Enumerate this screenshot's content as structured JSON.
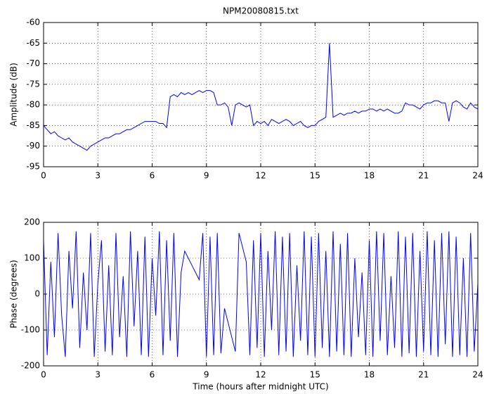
{
  "chart_data": [
    {
      "type": "line",
      "title": "NPM20080815.txt",
      "y_label": "Amplitude (dB)",
      "x": [
        0,
        0.2,
        0.4,
        0.6,
        0.8,
        1,
        1.2,
        1.4,
        1.6,
        1.8,
        2,
        2.2,
        2.4,
        2.6,
        2.8,
        3,
        3.2,
        3.4,
        3.6,
        3.8,
        4,
        4.2,
        4.4,
        4.6,
        4.8,
        5,
        5.2,
        5.4,
        5.6,
        5.8,
        6,
        6.2,
        6.4,
        6.6,
        6.8,
        7,
        7.2,
        7.4,
        7.6,
        7.8,
        8,
        8.2,
        8.4,
        8.6,
        8.8,
        9,
        9.2,
        9.4,
        9.6,
        9.8,
        10,
        10.2,
        10.4,
        10.6,
        10.8,
        11,
        11.2,
        11.4,
        11.6,
        11.8,
        12,
        12.2,
        12.4,
        12.6,
        12.8,
        13,
        13.2,
        13.4,
        13.6,
        13.8,
        14,
        14.2,
        14.4,
        14.6,
        14.8,
        15,
        15.2,
        15.4,
        15.6,
        15.8,
        16,
        16.2,
        16.4,
        16.6,
        16.8,
        17,
        17.2,
        17.4,
        17.6,
        17.8,
        18,
        18.2,
        18.4,
        18.6,
        18.8,
        19,
        19.2,
        19.4,
        19.6,
        19.8,
        20,
        20.2,
        20.4,
        20.6,
        20.8,
        21,
        21.2,
        21.4,
        21.6,
        21.8,
        22,
        22.2,
        22.4,
        22.6,
        22.8,
        23,
        23.2,
        23.4,
        23.6,
        23.8,
        24
      ],
      "series": [
        {
          "color": "#0000ff",
          "values": [
            -85,
            -86,
            -87,
            -86.5,
            -87.5,
            -88,
            -88.5,
            -88,
            -89,
            -89.5,
            -90,
            -90.5,
            -91,
            -90,
            -89.5,
            -89,
            -88.5,
            -88,
            -88,
            -87.5,
            -87,
            -87,
            -86.5,
            -86,
            -86,
            -85.5,
            -85,
            -84.5,
            -84,
            -84,
            -84,
            -84,
            -84.5,
            -84.5,
            -85.5,
            -78,
            -77.5,
            -78,
            -77,
            -77.5,
            -77,
            -77.5,
            -77,
            -76.5,
            -77,
            -76.5,
            -76.5,
            -77,
            -80,
            -80,
            -79.5,
            -80.5,
            -85,
            -80,
            -79.5,
            -80,
            -80.5,
            -80,
            -85,
            -84,
            -84.5,
            -84,
            -85,
            -83.5,
            -84,
            -84.5,
            -84,
            -83.5,
            -84,
            -85,
            -84.5,
            -84,
            -85,
            -85.5,
            -85,
            -85,
            -84,
            -83.5,
            -83,
            -65,
            -83,
            -82.5,
            -82,
            -82.5,
            -82,
            -82,
            -81.5,
            -82,
            -81.5,
            -81.5,
            -81,
            -81,
            -81.5,
            -81,
            -81.5,
            -81,
            -81.5,
            -82,
            -82,
            -81.5,
            -79.5,
            -80,
            -80,
            -80.5,
            -81,
            -80,
            -79.5,
            -79.5,
            -79,
            -79,
            -79.5,
            -79.5,
            -84,
            -79.5,
            -79,
            -79.5,
            -80.5,
            -81,
            -79.5,
            -80.5,
            -81
          ]
        }
      ],
      "xlim": [
        0,
        24
      ],
      "xticks": [
        0,
        3,
        6,
        9,
        12,
        15,
        18,
        21,
        24
      ],
      "ylim": [
        -95,
        -60
      ],
      "yticks": [
        -95,
        -90,
        -85,
        -80,
        -75,
        -70,
        -65,
        -60
      ],
      "grid": true
    },
    {
      "type": "line",
      "y_label": "Phase (degrees)",
      "x_label": "Time (hours after midnight UTC)",
      "x": [
        0,
        0.2,
        0.4,
        0.6,
        0.8,
        1,
        1.2,
        1.4,
        1.6,
        1.8,
        2,
        2.2,
        2.4,
        2.6,
        2.8,
        3,
        3.2,
        3.4,
        3.6,
        3.8,
        4,
        4.2,
        4.4,
        4.6,
        4.8,
        5,
        5.2,
        5.4,
        5.6,
        5.8,
        6,
        6.2,
        6.4,
        6.6,
        6.8,
        7,
        7.2,
        7.4,
        7.6,
        7.8,
        8,
        8.2,
        8.4,
        8.6,
        8.8,
        9,
        9.2,
        9.4,
        9.6,
        9.8,
        10,
        10.2,
        10.4,
        10.6,
        10.8,
        11,
        11.2,
        11.4,
        11.6,
        11.8,
        12,
        12.2,
        12.4,
        12.6,
        12.8,
        13,
        13.2,
        13.4,
        13.6,
        13.8,
        14,
        14.2,
        14.4,
        14.6,
        14.8,
        15,
        15.2,
        15.4,
        15.6,
        15.8,
        16,
        16.2,
        16.4,
        16.6,
        16.8,
        17,
        17.2,
        17.4,
        17.6,
        17.8,
        18,
        18.2,
        18.4,
        18.6,
        18.8,
        19,
        19.2,
        19.4,
        19.6,
        19.8,
        20,
        20.2,
        20.4,
        20.6,
        20.8,
        21,
        21.2,
        21.4,
        21.6,
        21.8,
        22,
        22.2,
        22.4,
        22.6,
        22.8,
        23,
        23.2,
        23.4,
        23.6,
        23.8,
        24
      ],
      "series": [
        {
          "color": "#0000ff",
          "values": [
            150,
            -170,
            90,
            -120,
            170,
            -60,
            -175,
            120,
            -40,
            175,
            -150,
            60,
            -100,
            170,
            -175,
            30,
            150,
            -160,
            80,
            -170,
            170,
            -120,
            50,
            -175,
            175,
            -90,
            120,
            -170,
            160,
            -175,
            100,
            -60,
            175,
            -170,
            150,
            -130,
            170,
            -175,
            60,
            120,
            100,
            80,
            60,
            40,
            170,
            -175,
            160,
            -170,
            170,
            -165,
            -40,
            -80,
            -120,
            -160,
            170,
            130,
            90,
            -170,
            150,
            -150,
            170,
            -175,
            120,
            -100,
            175,
            -170,
            160,
            -160,
            170,
            -175,
            80,
            -130,
            175,
            -170,
            160,
            -175,
            170,
            -150,
            120,
            -175,
            175,
            -160,
            140,
            -170,
            170,
            -175,
            100,
            -120,
            60,
            -170,
            150,
            -175,
            175,
            -130,
            170,
            -170,
            50,
            -150,
            175,
            -175,
            160,
            -165,
            170,
            -175,
            120,
            -160,
            175,
            -170,
            150,
            -175,
            170,
            -140,
            175,
            -175,
            160,
            -170,
            100,
            -175,
            170,
            -160,
            30
          ]
        }
      ],
      "xlim": [
        0,
        24
      ],
      "xticks": [
        0,
        3,
        6,
        9,
        12,
        15,
        18,
        21,
        24
      ],
      "ylim": [
        -200,
        200
      ],
      "yticks": [
        -200,
        -100,
        0,
        100,
        200
      ],
      "grid": true
    }
  ]
}
